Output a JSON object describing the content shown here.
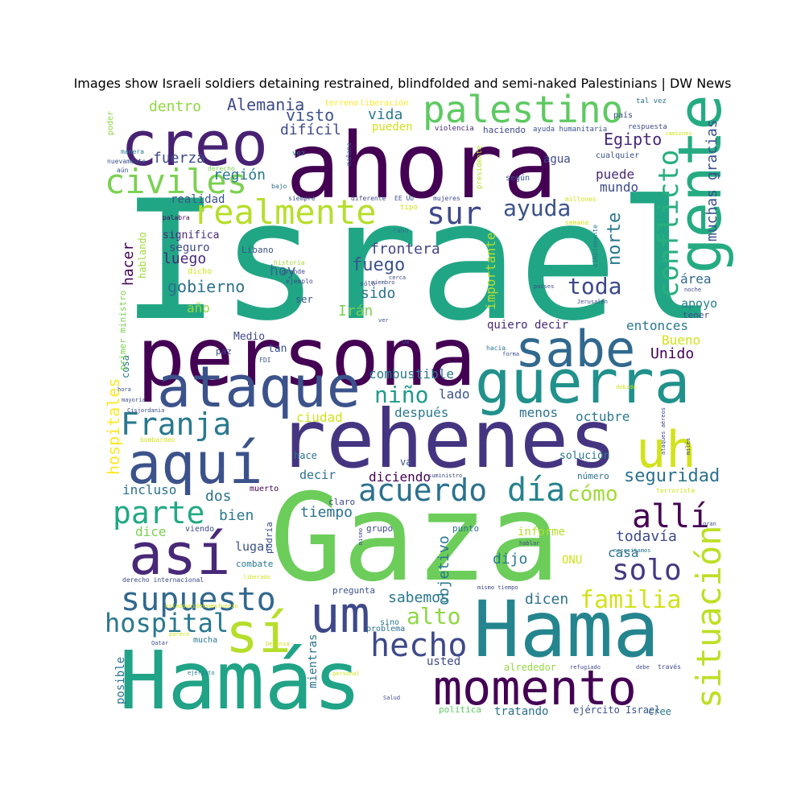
{
  "chart_data": {
    "type": "wordcloud",
    "title": "Images show Israeli soldiers detaining restrained, blindfolded and semi-naked Palestinians | DW News",
    "words": [
      {
        "text": "Israel",
        "weight": 100,
        "color": "#21a685"
      },
      {
        "text": "Gaza",
        "weight": 92,
        "color": "#6ccd5a"
      },
      {
        "text": "ahora",
        "weight": 80,
        "color": "#440154"
      },
      {
        "text": "rehenes",
        "weight": 70,
        "color": "#453581"
      },
      {
        "text": "persona",
        "weight": 70,
        "color": "#440154"
      },
      {
        "text": "Hamás",
        "weight": 68,
        "color": "#20a386"
      },
      {
        "text": "Hama",
        "weight": 66,
        "color": "#25858e"
      },
      {
        "text": "guerra",
        "weight": 60,
        "color": "#21918c"
      },
      {
        "text": "gente",
        "weight": 58,
        "color": "#25ab82"
      },
      {
        "text": "creo",
        "weight": 55,
        "color": "#482173"
      },
      {
        "text": "ataque",
        "weight": 52,
        "color": "#3b528b"
      },
      {
        "text": "aquí",
        "weight": 50,
        "color": "#3b528b"
      },
      {
        "text": "sabe",
        "weight": 50,
        "color": "#31688e"
      },
      {
        "text": "así",
        "weight": 50,
        "color": "#482878"
      },
      {
        "text": "momento",
        "weight": 45,
        "color": "#440154"
      },
      {
        "text": "uh",
        "weight": 44,
        "color": "#d2e21b"
      },
      {
        "text": "sí",
        "weight": 44,
        "color": "#b5de2b"
      },
      {
        "text": "um",
        "weight": 44,
        "color": "#3e4989"
      },
      {
        "text": "palestino",
        "weight": 38,
        "color": "#5ec962"
      },
      {
        "text": "situación",
        "weight": 34,
        "color": "#bddf26"
      },
      {
        "text": "supuesto",
        "weight": 32,
        "color": "#31688e"
      },
      {
        "text": "realmente",
        "weight": 30,
        "color": "#b5de2b"
      },
      {
        "text": "civiles",
        "weight": 30,
        "color": "#7ad151"
      },
      {
        "text": "Franja",
        "weight": 30,
        "color": "#2a788e"
      },
      {
        "text": "día",
        "weight": 30,
        "color": "#26828e"
      },
      {
        "text": "acuerdo",
        "weight": 30,
        "color": "#2c718e"
      },
      {
        "text": "parte",
        "weight": 30,
        "color": "#22a884"
      },
      {
        "text": "hecho",
        "weight": 30,
        "color": "#3e4989"
      },
      {
        "text": "allí",
        "weight": 30,
        "color": "#440154"
      },
      {
        "text": "sur",
        "weight": 28,
        "color": "#3e4989"
      },
      {
        "text": "conflicto",
        "weight": 26,
        "color": "#29af7f"
      },
      {
        "text": "hospital",
        "weight": 26,
        "color": "#2a788e"
      },
      {
        "text": "solo",
        "weight": 26,
        "color": "#443983"
      },
      {
        "text": "familia",
        "weight": 24,
        "color": "#d2e21b"
      },
      {
        "text": "toda",
        "weight": 22,
        "color": "#3e4989"
      },
      {
        "text": "alto",
        "weight": 20,
        "color": "#8fd744"
      },
      {
        "text": "niño",
        "weight": 20,
        "color": "#1f9a8a"
      },
      {
        "text": "ayuda",
        "weight": 20,
        "color": "#3b528b"
      },
      {
        "text": "cómo",
        "weight": 20,
        "color": "#a0da39"
      },
      {
        "text": "seguridad",
        "weight": 18,
        "color": "#2c718e"
      },
      {
        "text": "hospitales",
        "weight": 15,
        "color": "#fde725"
      },
      {
        "text": "objetivo",
        "weight": 15,
        "color": "#2a788e"
      },
      {
        "text": "muchas gracias",
        "weight": 14,
        "color": "#3b528b"
      },
      {
        "text": "importante",
        "weight": 14,
        "color": "#b5de2b"
      },
      {
        "text": "gobierno",
        "weight": 16,
        "color": "#2c718e"
      },
      {
        "text": "Alemania",
        "weight": 16,
        "color": "#3e4989"
      },
      {
        "text": "fuego",
        "weight": 16,
        "color": "#3b528b"
      },
      {
        "text": "Egipto",
        "weight": 16,
        "color": "#482878"
      },
      {
        "text": "norte",
        "weight": 16,
        "color": "#2a788e"
      },
      {
        "text": "frontera",
        "weight": 15,
        "color": "#414487"
      },
      {
        "text": "fuerza",
        "weight": 15,
        "color": "#3e4989"
      },
      {
        "text": "región",
        "weight": 15,
        "color": "#2a788e"
      },
      {
        "text": "visto",
        "weight": 15,
        "color": "#3b528b"
      },
      {
        "text": "vida",
        "weight": 15,
        "color": "#2a788e"
      },
      {
        "text": "dentro",
        "weight": 15,
        "color": "#90d743"
      },
      {
        "text": "difícil",
        "weight": 15,
        "color": "#3e4989"
      },
      {
        "text": "hacer",
        "weight": 15,
        "color": "#440154"
      },
      {
        "text": "hoy",
        "weight": 15,
        "color": "#31688e"
      },
      {
        "text": "luego",
        "weight": 15,
        "color": "#482878"
      },
      {
        "text": "sido",
        "weight": 15,
        "color": "#2c718e"
      },
      {
        "text": "Irán",
        "weight": 14,
        "color": "#7ad151"
      },
      {
        "text": "año",
        "weight": 14,
        "color": "#95d840"
      },
      {
        "text": "puede",
        "weight": 14,
        "color": "#482878"
      },
      {
        "text": "mundo",
        "weight": 14,
        "color": "#3e4989"
      },
      {
        "text": "Unido",
        "weight": 15,
        "color": "#440154"
      },
      {
        "text": "Bueno",
        "weight": 15,
        "color": "#d2e21b"
      },
      {
        "text": "entonces",
        "weight": 14,
        "color": "#2a788e"
      },
      {
        "text": "área",
        "weight": 14,
        "color": "#31688e"
      },
      {
        "text": "apoyo",
        "weight": 13,
        "color": "#26828e"
      },
      {
        "text": "combustible",
        "weight": 14,
        "color": "#2a788e"
      },
      {
        "text": "lado",
        "weight": 14,
        "color": "#3b528b"
      },
      {
        "text": "después",
        "weight": 14,
        "color": "#2a788e"
      },
      {
        "text": "menos",
        "weight": 14,
        "color": "#2c718e"
      },
      {
        "text": "octubre",
        "weight": 15,
        "color": "#2a788e"
      },
      {
        "text": "ciudad",
        "weight": 14,
        "color": "#d2e21b"
      },
      {
        "text": "quiero decir",
        "weight": 13,
        "color": "#482878"
      },
      {
        "text": "agua",
        "weight": 13,
        "color": "#3e4989"
      },
      {
        "text": "realidad",
        "weight": 13,
        "color": "#3b528b"
      },
      {
        "text": "seguro",
        "weight": 13,
        "color": "#3e4989"
      },
      {
        "text": "significa",
        "weight": 12,
        "color": "#482878"
      },
      {
        "text": "tiempo",
        "weight": 15,
        "color": "#2c718e"
      },
      {
        "text": "bien",
        "weight": 16,
        "color": "#2a788e"
      },
      {
        "text": "dos",
        "weight": 16,
        "color": "#2c718e"
      },
      {
        "text": "incluso",
        "weight": 14,
        "color": "#2c718e"
      },
      {
        "text": "dice",
        "weight": 15,
        "color": "#7ad151"
      },
      {
        "text": "todavía",
        "weight": 15,
        "color": "#3e4989"
      },
      {
        "text": "casa",
        "weight": 14,
        "color": "#2c718e"
      },
      {
        "text": "informe",
        "weight": 13,
        "color": "#b5de2b"
      },
      {
        "text": "ONU",
        "weight": 13,
        "color": "#d2e21b"
      },
      {
        "text": "dijo",
        "weight": 15,
        "color": "#2a788e"
      },
      {
        "text": "sabemos",
        "weight": 15,
        "color": "#2a788e"
      },
      {
        "text": "dicen",
        "weight": 15,
        "color": "#2c718e"
      },
      {
        "text": "diciendo",
        "weight": 14,
        "color": "#440154"
      },
      {
        "text": "lugar",
        "weight": 14,
        "color": "#3b528b"
      },
      {
        "text": "decir",
        "weight": 14,
        "color": "#2c718e"
      },
      {
        "text": "solución",
        "weight": 13,
        "color": "#2a788e"
      },
      {
        "text": "mientras",
        "weight": 13,
        "color": "#2c718e"
      },
      {
        "text": "usted",
        "weight": 13,
        "color": "#3e4989"
      },
      {
        "text": "posible",
        "weight": 13,
        "color": "#2c718e"
      },
      {
        "text": "cosa",
        "weight": 12,
        "color": "#2a788e"
      },
      {
        "text": "tratando",
        "weight": 13,
        "color": "#2c718e"
      },
      {
        "text": "ejército Israel",
        "weight": 12,
        "color": "#3b528b"
      },
      {
        "text": "alrededor",
        "weight": 12,
        "color": "#95d840"
      },
      {
        "text": "política",
        "weight": 11,
        "color": "#5ec962"
      },
      {
        "text": "cree",
        "weight": 11,
        "color": "#2a788e"
      },
      {
        "text": "hablando",
        "weight": 12,
        "color": "#a0da39"
      },
      {
        "text": "primer ministro",
        "weight": 10,
        "color": "#7ad151"
      },
      {
        "text": "Medio",
        "weight": 12,
        "color": "#3e4989"
      },
      {
        "text": "tan",
        "weight": 12,
        "color": "#3b528b"
      },
      {
        "text": "paz",
        "weight": 11,
        "color": "#3e4989"
      },
      {
        "text": "hace",
        "weight": 12,
        "color": "#2c718e"
      },
      {
        "text": "va",
        "weight": 12,
        "color": "#3b528b"
      },
      {
        "text": "ser",
        "weight": 12,
        "color": "#3b528b"
      },
      {
        "text": "muerto",
        "weight": 10,
        "color": "#440154"
      },
      {
        "text": "podría",
        "weight": 11,
        "color": "#3e4989"
      },
      {
        "text": "combate",
        "weight": 11,
        "color": "#2a788e"
      },
      {
        "text": "pregunta",
        "weight": 11,
        "color": "#3b528b"
      },
      {
        "text": "grupo",
        "weight": 11,
        "color": "#3e4989"
      },
      {
        "text": "punto",
        "weight": 11,
        "color": "#2c718e"
      },
      {
        "text": "número",
        "weight": 11,
        "color": "#2c718e"
      },
      {
        "text": "tener",
        "weight": 10,
        "color": "#3e4989"
      },
      {
        "text": "mucha",
        "weight": 10,
        "color": "#2a788e"
      },
      {
        "text": "Líbano",
        "weight": 11,
        "color": "#3b528b"
      },
      {
        "text": "viendo",
        "weight": 10,
        "color": "#3e4989"
      },
      {
        "text": "claro",
        "weight": 11,
        "color": "#3e4989"
      },
      {
        "text": "problema",
        "weight": 10,
        "color": "#2c718e"
      },
      {
        "text": "sino",
        "weight": 10,
        "color": "#2a788e"
      },
      {
        "text": "pueden",
        "weight": 12,
        "color": "#d2e21b"
      },
      {
        "text": "haciendo",
        "weight": 10,
        "color": "#3e4989"
      },
      {
        "text": "país",
        "weight": 10,
        "color": "#3e4989"
      },
      {
        "text": "cualquier",
        "weight": 10,
        "color": "#3b528b"
      },
      {
        "text": "según",
        "weight": 10,
        "color": "#3b528b"
      },
      {
        "text": "violencia",
        "weight": 9,
        "color": "#482878"
      },
      {
        "text": "ayuda humanitaria",
        "weight": 9,
        "color": "#3b528b"
      },
      {
        "text": "respuesta",
        "weight": 9,
        "color": "#3e4989"
      },
      {
        "text": "terreno",
        "weight": 9,
        "color": "#fde725"
      },
      {
        "text": "liberación",
        "weight": 9,
        "color": "#fde725"
      },
      {
        "text": "tal vez",
        "weight": 8,
        "color": "#2c718e"
      },
      {
        "text": "poder",
        "weight": 9,
        "color": "#90d743"
      },
      {
        "text": "manera",
        "weight": 8,
        "color": "#2a788e"
      },
      {
        "text": "nuevamente",
        "weight": 8,
        "color": "#3b528b"
      },
      {
        "text": "aún",
        "weight": 8,
        "color": "#3b528b"
      },
      {
        "text": "derecho",
        "weight": 8,
        "color": "#7ad151"
      },
      {
        "text": "vez",
        "weight": 8,
        "color": "#2a788e"
      },
      {
        "text": "mañana",
        "weight": 8,
        "color": "#3b528b"
      },
      {
        "text": "presidente",
        "weight": 9,
        "color": "#b5de2b"
      },
      {
        "text": "bajo",
        "weight": 8,
        "color": "#2c718e"
      },
      {
        "text": "siempre",
        "weight": 8,
        "color": "#3b528b"
      },
      {
        "text": "diferente",
        "weight": 8,
        "color": "#3e4989"
      },
      {
        "text": "EE UU",
        "weight": 8,
        "color": "#3b528b"
      },
      {
        "text": "mujeres",
        "weight": 8,
        "color": "#3e4989"
      },
      {
        "text": "millones",
        "weight": 8,
        "color": "#d2e21b"
      },
      {
        "text": "camiones",
        "weight": 7,
        "color": "#d2e21b"
      },
      {
        "text": "palabra",
        "weight": 8,
        "color": "#440154"
      },
      {
        "text": "tipo",
        "weight": 8,
        "color": "#d2e21b"
      },
      {
        "text": "semana",
        "weight": 8,
        "color": "#d2e21b"
      },
      {
        "text": "cabo",
        "weight": 8,
        "color": "#2c718e"
      },
      {
        "text": "simplemente",
        "weight": 8,
        "color": "#2a788e"
      },
      {
        "text": "historia",
        "weight": 8,
        "color": "#a0da39"
      },
      {
        "text": "grande",
        "weight": 8,
        "color": "#3e4989"
      },
      {
        "text": "ejemplo",
        "weight": 8,
        "color": "#3e4989"
      },
      {
        "text": "sólo",
        "weight": 8,
        "color": "#3e4989"
      },
      {
        "text": "cerca",
        "weight": 7,
        "color": "#3e4989"
      },
      {
        "text": "miembro",
        "weight": 7,
        "color": "#3e4989"
      },
      {
        "text": "dicho",
        "weight": 9,
        "color": "#d2e21b"
      },
      {
        "text": "países",
        "weight": 7,
        "color": "#3e4989"
      },
      {
        "text": "noche",
        "weight": 7,
        "color": "#3e4989"
      },
      {
        "text": "Jerusalén",
        "weight": 7,
        "color": "#3e4989"
      },
      {
        "text": "ver",
        "weight": 7,
        "color": "#3b528b"
      },
      {
        "text": "DW",
        "weight": 7,
        "color": "#3e4989"
      },
      {
        "text": "FDI",
        "weight": 8,
        "color": "#3b528b"
      },
      {
        "text": "hacia",
        "weight": 8,
        "color": "#2a788e"
      },
      {
        "text": "forma",
        "weight": 7,
        "color": "#3b528b"
      },
      {
        "text": "debido",
        "weight": 7,
        "color": "#d2e21b"
      },
      {
        "text": "ataques aéreos",
        "weight": 7,
        "color": "#3e4989"
      },
      {
        "text": "miles",
        "weight": 7,
        "color": "#3e4989"
      },
      {
        "text": "necesitamos",
        "weight": 7,
        "color": "#2a788e"
      },
      {
        "text": "hablar",
        "weight": 7,
        "color": "#3e4989"
      },
      {
        "text": "gran",
        "weight": 7,
        "color": "#3e4989"
      },
      {
        "text": "mismo",
        "weight": 7,
        "color": "#3e4989"
      },
      {
        "text": "terrorista",
        "weight": 8,
        "color": "#d2e21b"
      },
      {
        "text": "suministro",
        "weight": 7,
        "color": "#3e4989"
      },
      {
        "text": "mismo tiempo",
        "weight": 7,
        "color": "#3e4989"
      },
      {
        "text": "hora",
        "weight": 7,
        "color": "#3b528b"
      },
      {
        "text": "mayoría",
        "weight": 7,
        "color": "#3e4989"
      },
      {
        "text": "Cisjordania",
        "weight": 7,
        "color": "#3e4989"
      },
      {
        "text": "bombardeo",
        "weight": 8,
        "color": "#d2e21b"
      },
      {
        "text": "derecho internacional",
        "weight": 8,
        "color": "#3e4989"
      },
      {
        "text": "liberado",
        "weight": 7,
        "color": "#d2e21b"
      },
      {
        "text": "estadounidense",
        "weight": 7,
        "color": "#d2e21b"
      },
      {
        "text": "esfuerzo",
        "weight": 7,
        "color": "#d2e21b"
      },
      {
        "text": "parece",
        "weight": 7,
        "color": "#d2e21b"
      },
      {
        "text": "Qatar",
        "weight": 7,
        "color": "#3e4989"
      },
      {
        "text": "ejército",
        "weight": 7,
        "color": "#2a788e"
      },
      {
        "text": "Defensa",
        "weight": 7,
        "color": "#d2e21b"
      },
      {
        "text": "personal",
        "weight": 7,
        "color": "#d2e21b"
      },
      {
        "text": "refugiado",
        "weight": 7,
        "color": "#3e4989"
      },
      {
        "text": "debe",
        "weight": 7,
        "color": "#3e4989"
      },
      {
        "text": "través",
        "weight": 8,
        "color": "#3e4989"
      },
      {
        "text": "Salud",
        "weight": 7,
        "color": "#3e4989"
      }
    ]
  }
}
